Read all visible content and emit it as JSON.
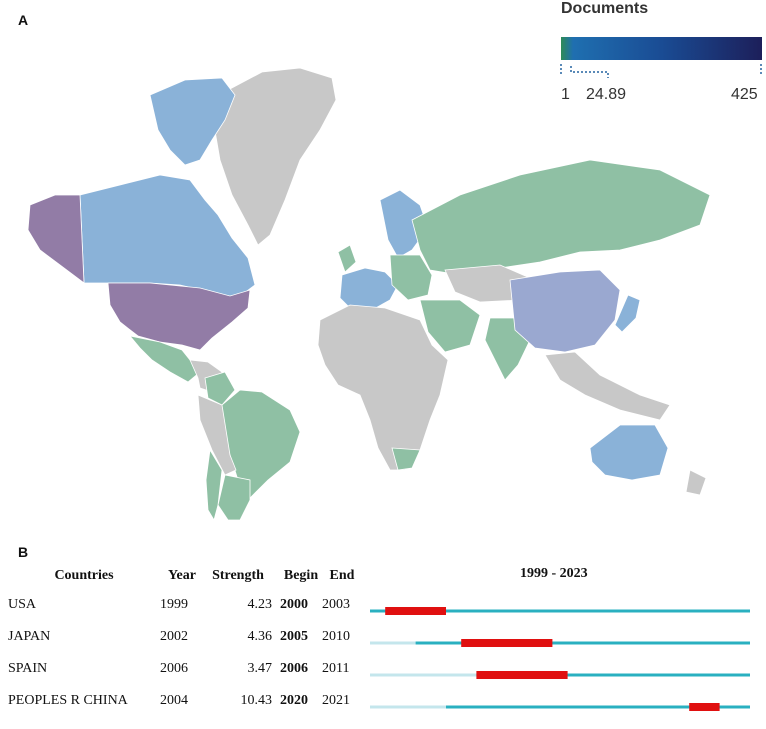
{
  "panel_a_label": "A",
  "panel_b_label": "B",
  "legend": {
    "title": "Documents",
    "min": "1",
    "mid": "24.89",
    "max": "425",
    "colors": [
      "#2e8b57",
      "#1f5fa8",
      "#1a3c8c",
      "#20225e"
    ]
  },
  "map_colors": {
    "none": "#c8c8c8",
    "low": "#8fc0a4",
    "lowmid": "#8ab2d8",
    "mid": "#9aa8d0",
    "high": "#927ca6"
  },
  "chart_data": {
    "type": "table",
    "title": "1999 - 2023",
    "columns": [
      "Countries",
      "Year",
      "Strength",
      "Begin",
      "End"
    ],
    "range": [
      1999,
      2023
    ],
    "rows": [
      {
        "country": "USA",
        "year": "1999",
        "strength": "4.23",
        "begin": "2000",
        "end": "2003"
      },
      {
        "country": "JAPAN",
        "year": "2002",
        "strength": "4.36",
        "begin": "2005",
        "end": "2010"
      },
      {
        "country": "SPAIN",
        "year": "2006",
        "strength": "3.47",
        "begin": "2006",
        "end": "2011"
      },
      {
        "country": "PEOPLES R CHINA",
        "year": "2004",
        "strength": "10.43",
        "begin": "2020",
        "end": "2021"
      }
    ],
    "colors": {
      "burst": "#e01010",
      "active": "#2ab0c0",
      "inactive": "#c4e6ec"
    }
  }
}
